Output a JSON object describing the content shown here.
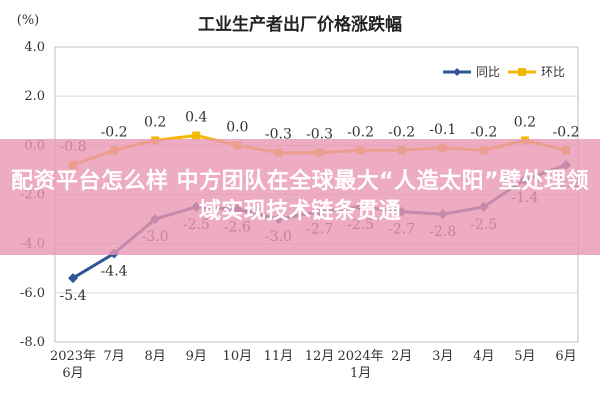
{
  "chart_data": {
    "type": "line",
    "title": "工业生产者出厂价格涨跌幅",
    "ylabel": "(%)",
    "ylim": [
      -8.0,
      4.0
    ],
    "yticks": [
      "4.0",
      "2.0",
      "0.0",
      "-2.0",
      "-4.0",
      "-6.0",
      "-8.0"
    ],
    "ytick_values": [
      4,
      2,
      0,
      -2,
      -4,
      -6,
      -8
    ],
    "categories": [
      "2023年\n6月",
      "7月",
      "8月",
      "9月",
      "10月",
      "11月",
      "12月",
      "2024年\n1月",
      "2月",
      "3月",
      "4月",
      "5月",
      "6月"
    ],
    "grid": true,
    "legend_position": "top-right",
    "series": [
      {
        "name": "同比",
        "color": "#2f5597",
        "values": [
          -5.4,
          -4.4,
          -3.0,
          -2.5,
          -2.6,
          -3.0,
          -2.7,
          -2.5,
          -2.7,
          -2.8,
          -2.5,
          -1.4,
          -0.8
        ],
        "labels": [
          "-5.4",
          "-4.4",
          "-3.0",
          "-2.5",
          "-2.6",
          "-3.0",
          "-2.7",
          "-2.5",
          "-2.7",
          "-2.8",
          "-2.5",
          "-1.4",
          "-0.8"
        ]
      },
      {
        "name": "环比",
        "color": "#f5b800",
        "values": [
          -0.8,
          -0.2,
          0.2,
          0.4,
          0.0,
          -0.3,
          -0.3,
          -0.2,
          -0.2,
          -0.1,
          -0.2,
          0.2,
          -0.2
        ],
        "labels": [
          "-0.8",
          "-0.2",
          "0.2",
          "0.4",
          "0.0",
          "-0.3",
          "-0.3",
          "-0.2",
          "-0.2",
          "-0.1",
          "-0.2",
          "0.2",
          "-0.2"
        ]
      }
    ]
  },
  "overlay": {
    "text": "配资平台怎么样 中方团队在全球最大“人造太阳”壁处理领域实现技术链条贯通"
  }
}
